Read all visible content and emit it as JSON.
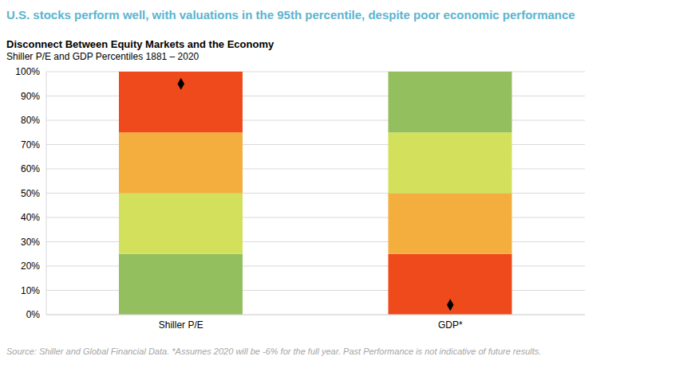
{
  "title": "U.S. stocks perform well, with valuations in the 95th percentile, despite poor economic performance",
  "note": "Source: Shiller and Global Financial Data. *Assumes 2020 will be -6% for the full year. Past Performance is not indicative of future results.",
  "chart_data": {
    "type": "bar",
    "title": "Disconnect Between Equity Markets and the Economy",
    "subtitle": "Shiller P/E and GDP Percentiles 1881 – 2020",
    "categories": [
      "Shiller P/E",
      "GDP*"
    ],
    "stacked": true,
    "grid": true,
    "ylim": [
      0,
      100
    ],
    "yticks": [
      {
        "value": 0,
        "label": "0%"
      },
      {
        "value": 10,
        "label": "10%"
      },
      {
        "value": 20,
        "label": "20%"
      },
      {
        "value": 30,
        "label": "30%"
      },
      {
        "value": 40,
        "label": "40%"
      },
      {
        "value": 50,
        "label": "50%"
      },
      {
        "value": 60,
        "label": "60%"
      },
      {
        "value": 70,
        "label": "70%"
      },
      {
        "value": 80,
        "label": "80%"
      },
      {
        "value": 90,
        "label": "90%"
      },
      {
        "value": 100,
        "label": "100%"
      }
    ],
    "series": [
      {
        "type": "bar",
        "values": [
          25,
          25
        ],
        "colors": [
          "#93BF5E",
          "#EE4A1C"
        ]
      },
      {
        "type": "bar",
        "values": [
          25,
          25
        ],
        "colors": [
          "#D2E05C",
          "#F4AE3D"
        ]
      },
      {
        "type": "bar",
        "values": [
          25,
          25
        ],
        "colors": [
          "#F4AE3D",
          "#D2E05C"
        ]
      },
      {
        "type": "bar",
        "values": [
          25,
          25
        ],
        "colors": [
          "#EE4A1C",
          "#93BF5E"
        ]
      },
      {
        "type": "scatter",
        "marker": "diamond",
        "color": "#000000",
        "values": [
          95,
          4
        ]
      }
    ]
  }
}
